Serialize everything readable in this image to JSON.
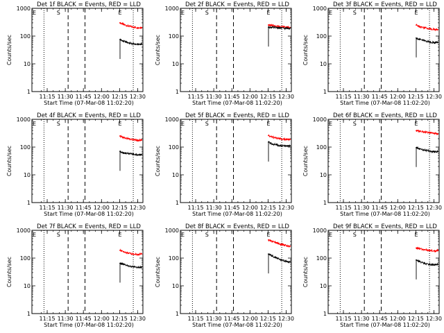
{
  "colors": {
    "events": "#000000",
    "lld": "#ff0000",
    "axis": "#000000",
    "background": "#ffffff"
  },
  "common": {
    "ylabel": "Counts/sec",
    "xlabel": "Start Time (07-Mar-08 11:02:20)",
    "xticks": [
      "11:15",
      "11:30",
      "11:45",
      "12:00",
      "12:15",
      "12:30"
    ],
    "yticks": [
      "1",
      "10",
      "100",
      "1000"
    ],
    "marker_labels": [
      "E",
      "S",
      "E"
    ]
  },
  "chart_data": [
    {
      "type": "line",
      "title": "Det 1f BLACK = Events, RED = LLD",
      "x_unit": "minutes after 11:02:20",
      "xlim": [
        0,
        92
      ],
      "ylim": [
        1,
        1000
      ],
      "yscale": "log",
      "dotted_lines": [
        10,
        84
      ],
      "dashed_lines": [
        30,
        44
      ],
      "marker_labels_x": [
        0,
        20,
        71
      ],
      "x": [
        73,
        76,
        80,
        84,
        88,
        91
      ],
      "series": [
        {
          "name": "LLD",
          "color": "red",
          "values": [
            300,
            260,
            230,
            210,
            200,
            205
          ]
        },
        {
          "name": "Events",
          "color": "black",
          "values": [
            75,
            65,
            57,
            52,
            50,
            52
          ]
        }
      ]
    },
    {
      "type": "line",
      "title": "Det 2f BLACK = Events, RED = LLD",
      "x_unit": "minutes after 11:02:20",
      "xlim": [
        0,
        92
      ],
      "ylim": [
        1,
        1000
      ],
      "yscale": "log",
      "dotted_lines": [
        10,
        84
      ],
      "dashed_lines": [
        30,
        44
      ],
      "marker_labels_x": [
        0,
        20,
        71
      ],
      "x": [
        73,
        76,
        80,
        84,
        88,
        91
      ],
      "series": [
        {
          "name": "LLD",
          "color": "red",
          "values": [
            250,
            240,
            230,
            220,
            210,
            205
          ]
        },
        {
          "name": "Events",
          "color": "black",
          "values": [
            210,
            205,
            200,
            195,
            190,
            195
          ]
        }
      ]
    },
    {
      "type": "line",
      "title": "Det 3f BLACK = Events, RED = LLD",
      "x_unit": "minutes after 11:02:20",
      "xlim": [
        0,
        92
      ],
      "ylim": [
        1,
        1000
      ],
      "yscale": "log",
      "dotted_lines": [
        10,
        84
      ],
      "dashed_lines": [
        30,
        44
      ],
      "marker_labels_x": [
        0,
        20,
        71
      ],
      "x": [
        73,
        76,
        80,
        84,
        88,
        91
      ],
      "series": [
        {
          "name": "LLD",
          "color": "red",
          "values": [
            250,
            220,
            200,
            185,
            175,
            170
          ]
        },
        {
          "name": "Events",
          "color": "black",
          "values": [
            85,
            75,
            68,
            62,
            58,
            60
          ]
        }
      ]
    },
    {
      "type": "line",
      "title": "Det 4f BLACK = Events, RED = LLD",
      "x_unit": "minutes after 11:02:20",
      "xlim": [
        0,
        92
      ],
      "ylim": [
        1,
        1000
      ],
      "yscale": "log",
      "dotted_lines": [
        10,
        84
      ],
      "dashed_lines": [
        30,
        44
      ],
      "marker_labels_x": [
        0,
        20,
        71
      ],
      "x": [
        73,
        76,
        80,
        84,
        88,
        91
      ],
      "series": [
        {
          "name": "LLD",
          "color": "red",
          "values": [
            250,
            220,
            200,
            185,
            175,
            180
          ]
        },
        {
          "name": "Events",
          "color": "black",
          "values": [
            70,
            62,
            58,
            55,
            52,
            54
          ]
        }
      ]
    },
    {
      "type": "line",
      "title": "Det 5f BLACK = Events, RED = LLD",
      "x_unit": "minutes after 11:02:20",
      "xlim": [
        0,
        92
      ],
      "ylim": [
        1,
        1000
      ],
      "yscale": "log",
      "dotted_lines": [
        10,
        84
      ],
      "dashed_lines": [
        30,
        44
      ],
      "marker_labels_x": [
        0,
        20,
        71
      ],
      "x": [
        73,
        76,
        80,
        84,
        88,
        91
      ],
      "series": [
        {
          "name": "LLD",
          "color": "red",
          "values": [
            260,
            230,
            210,
            195,
            185,
            190
          ]
        },
        {
          "name": "Events",
          "color": "black",
          "values": [
            150,
            130,
            120,
            112,
            108,
            112
          ]
        }
      ]
    },
    {
      "type": "line",
      "title": "Det 6f BLACK = Events, RED = LLD",
      "x_unit": "minutes after 11:02:20",
      "xlim": [
        0,
        92
      ],
      "ylim": [
        1,
        1000
      ],
      "yscale": "log",
      "dotted_lines": [
        10,
        84
      ],
      "dashed_lines": [
        30,
        44
      ],
      "marker_labels_x": [
        0,
        20,
        71
      ],
      "x": [
        73,
        76,
        80,
        84,
        88,
        91
      ],
      "series": [
        {
          "name": "LLD",
          "color": "red",
          "values": [
            390,
            370,
            350,
            330,
            310,
            300
          ]
        },
        {
          "name": "Events",
          "color": "black",
          "values": [
            95,
            85,
            78,
            72,
            68,
            70
          ]
        }
      ]
    },
    {
      "type": "line",
      "title": "Det 7f BLACK = Events, RED = LLD",
      "x_unit": "minutes after 11:02:20",
      "xlim": [
        0,
        92
      ],
      "ylim": [
        1,
        1000
      ],
      "yscale": "log",
      "dotted_lines": [
        10,
        84
      ],
      "dashed_lines": [
        30,
        44
      ],
      "marker_labels_x": [
        0,
        20,
        71
      ],
      "x": [
        73,
        76,
        80,
        84,
        88,
        91
      ],
      "series": [
        {
          "name": "LLD",
          "color": "red",
          "values": [
            190,
            170,
            150,
            140,
            135,
            140
          ]
        },
        {
          "name": "Events",
          "color": "black",
          "values": [
            65,
            58,
            52,
            48,
            46,
            48
          ]
        }
      ]
    },
    {
      "type": "line",
      "title": "Det 8f BLACK = Events, RED = LLD",
      "x_unit": "minutes after 11:02:20",
      "xlim": [
        0,
        92
      ],
      "ylim": [
        1,
        1000
      ],
      "yscale": "log",
      "dotted_lines": [
        10,
        84
      ],
      "dashed_lines": [
        30,
        44
      ],
      "marker_labels_x": [
        0,
        20,
        71
      ],
      "x": [
        73,
        76,
        80,
        84,
        88,
        91
      ],
      "series": [
        {
          "name": "LLD",
          "color": "red",
          "values": [
            450,
            400,
            350,
            310,
            280,
            270
          ]
        },
        {
          "name": "Events",
          "color": "black",
          "values": [
            140,
            120,
            100,
            85,
            75,
            72
          ]
        }
      ]
    },
    {
      "type": "line",
      "title": "Det 9f BLACK = Events, RED = LLD",
      "x_unit": "minutes after 11:02:20",
      "xlim": [
        0,
        92
      ],
      "ylim": [
        1,
        1000
      ],
      "yscale": "log",
      "dotted_lines": [
        10,
        84
      ],
      "dashed_lines": [
        30,
        44
      ],
      "marker_labels_x": [
        0,
        20,
        71
      ],
      "x": [
        73,
        76,
        80,
        84,
        88,
        91
      ],
      "series": [
        {
          "name": "LLD",
          "color": "red",
          "values": [
            230,
            215,
            200,
            190,
            180,
            185
          ]
        },
        {
          "name": "Events",
          "color": "black",
          "values": [
            85,
            75,
            65,
            60,
            58,
            60
          ]
        }
      ]
    }
  ]
}
